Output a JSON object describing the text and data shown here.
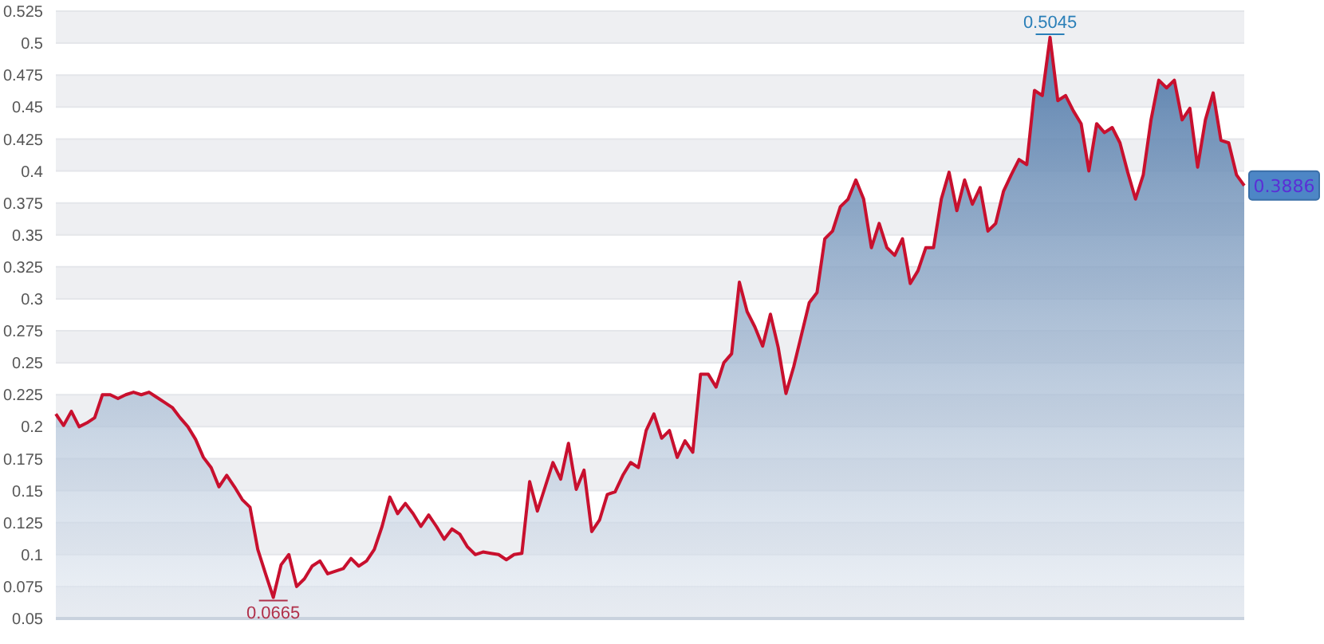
{
  "chart_data": {
    "type": "area",
    "categories": [
      null,
      null,
      null,
      null,
      null,
      null,
      null,
      null,
      null,
      null,
      null,
      null,
      null,
      null,
      null,
      null,
      null,
      null,
      null,
      null,
      null,
      null,
      null,
      null,
      null,
      null,
      null,
      null,
      null,
      null,
      null,
      null,
      null,
      null,
      null,
      null,
      null,
      null,
      null,
      null,
      null,
      null,
      null,
      null,
      null,
      null,
      null,
      null,
      null,
      null,
      null,
      null,
      null,
      null,
      null,
      null,
      null,
      null,
      null,
      null,
      null,
      null,
      null,
      null,
      null,
      null,
      null,
      null,
      null,
      null,
      null,
      null,
      null,
      null,
      null,
      null,
      null,
      null,
      null,
      null,
      null,
      null,
      null,
      null,
      null,
      null,
      null,
      null,
      null,
      null,
      null,
      null,
      null,
      null,
      null,
      null,
      null,
      null,
      null,
      null,
      null,
      null,
      null,
      null,
      null,
      null,
      null,
      null,
      null,
      null,
      null,
      null,
      null,
      null,
      null,
      null,
      null,
      null,
      null,
      null,
      null,
      null,
      null,
      null,
      null,
      null,
      null,
      null,
      null,
      null,
      null,
      null,
      null,
      null,
      null,
      null,
      null,
      null,
      null,
      null,
      null,
      null,
      null,
      null,
      null,
      null,
      null,
      null,
      null,
      null,
      null,
      null,
      null,
      null
    ],
    "series": [
      {
        "color": "#c8102e",
        "values": [
          0.21,
          0.201,
          0.212,
          0.2,
          0.203,
          0.207,
          0.225,
          0.225,
          0.222,
          0.225,
          0.227,
          0.225,
          0.227,
          0.223,
          0.219,
          0.215,
          0.207,
          0.2,
          0.19,
          0.176,
          0.168,
          0.153,
          0.162,
          0.153,
          0.143,
          0.137,
          0.104,
          0.085,
          0.0665,
          0.092,
          0.1,
          0.075,
          0.081,
          0.091,
          0.095,
          0.085,
          0.087,
          0.089,
          0.097,
          0.091,
          0.095,
          0.104,
          0.122,
          0.145,
          0.132,
          0.14,
          0.132,
          0.122,
          0.131,
          0.122,
          0.112,
          0.12,
          0.116,
          0.106,
          0.1,
          0.102,
          0.101,
          0.1,
          0.096,
          0.1,
          0.101,
          0.157,
          0.134,
          0.153,
          0.172,
          0.159,
          0.187,
          0.151,
          0.166,
          0.118,
          0.127,
          0.147,
          0.149,
          0.162,
          0.172,
          0.168,
          0.197,
          0.21,
          0.191,
          0.197,
          0.176,
          0.189,
          0.18,
          0.241,
          0.241,
          0.231,
          0.25,
          0.257,
          0.313,
          0.29,
          0.278,
          0.263,
          0.288,
          0.262,
          0.226,
          0.247,
          0.272,
          0.297,
          0.305,
          0.347,
          0.353,
          0.372,
          0.378,
          0.393,
          0.378,
          0.34,
          0.359,
          0.34,
          0.334,
          0.347,
          0.312,
          0.322,
          0.34,
          0.34,
          0.378,
          0.399,
          0.369,
          0.393,
          0.374,
          0.387,
          0.353,
          0.359,
          0.384,
          0.397,
          0.409,
          0.405,
          0.463,
          0.459,
          0.5045,
          0.455,
          0.459,
          0.447,
          0.437,
          0.4,
          0.437,
          0.43,
          0.434,
          0.422,
          0.399,
          0.378,
          0.397,
          0.44,
          0.471,
          0.465,
          0.471,
          0.44,
          0.449,
          0.403,
          0.44,
          0.461,
          0.424,
          0.422,
          0.397,
          0.3886
        ]
      }
    ],
    "ylim": [
      0.05,
      0.525
    ],
    "yticks": [
      0.05,
      0.075,
      0.1,
      0.125,
      0.15,
      0.175,
      0.2,
      0.225,
      0.25,
      0.275,
      0.3,
      0.325,
      0.35,
      0.375,
      0.4,
      0.425,
      0.45,
      0.475,
      0.5,
      0.525
    ],
    "grid": "y",
    "tick_labels": "y",
    "marker": "none",
    "line_style": "solid",
    "annotations": [
      {
        "text": "0.5045",
        "y": 0.5045
      },
      {
        "text": "0.0665",
        "y": 0.0665
      },
      {
        "text": "0.3886",
        "y": 0.3886
      }
    ]
  }
}
